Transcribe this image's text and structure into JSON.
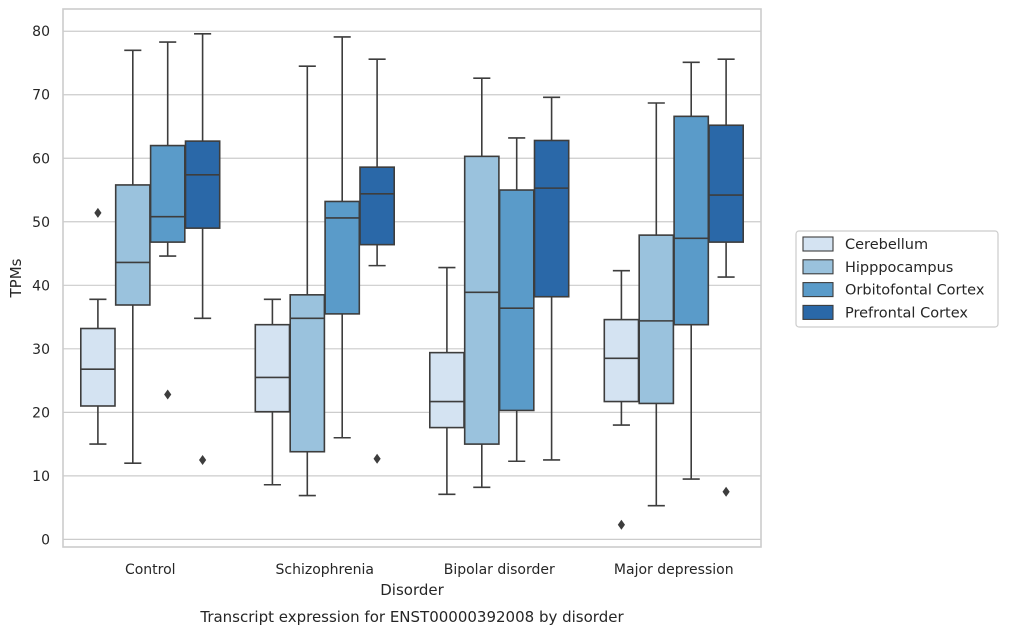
{
  "chart_data": {
    "type": "box",
    "caption": "Transcript expression for ENST00000392008 by disorder",
    "xlabel": "Disorder",
    "ylabel": "TPMs",
    "ylim": [
      -1.2,
      83.5
    ],
    "yticks": [
      0,
      10,
      20,
      30,
      40,
      50,
      60,
      70,
      80
    ],
    "grid": "horizontal",
    "legend_position": "right",
    "categories": [
      "Control",
      "Schizophrenia",
      "Bipolar disorder",
      "Major depression"
    ],
    "series": [
      {
        "name": "Cerebellum",
        "color": "#d4e3f2",
        "boxes": [
          {
            "whislo": 15.0,
            "q1": 21.0,
            "med": 26.8,
            "q3": 33.2,
            "whishi": 37.8,
            "fliers": [
              51.4
            ]
          },
          {
            "whislo": 8.6,
            "q1": 20.1,
            "med": 25.5,
            "q3": 33.8,
            "whishi": 37.8,
            "fliers": []
          },
          {
            "whislo": 7.1,
            "q1": 17.6,
            "med": 21.7,
            "q3": 29.4,
            "whishi": 42.8,
            "fliers": []
          },
          {
            "whislo": 18.0,
            "q1": 21.7,
            "med": 28.5,
            "q3": 34.6,
            "whishi": 42.3,
            "fliers": [
              2.3
            ]
          }
        ]
      },
      {
        "name": "Hipppocampus",
        "color": "#9ac2dd",
        "boxes": [
          {
            "whislo": 12.0,
            "q1": 36.9,
            "med": 43.6,
            "q3": 55.8,
            "whishi": 77.0,
            "fliers": []
          },
          {
            "whislo": 6.9,
            "q1": 13.8,
            "med": 34.8,
            "q3": 38.5,
            "whishi": 74.5,
            "fliers": []
          },
          {
            "whislo": 8.2,
            "q1": 15.0,
            "med": 38.9,
            "q3": 60.3,
            "whishi": 72.6,
            "fliers": []
          },
          {
            "whislo": 5.3,
            "q1": 21.4,
            "med": 34.4,
            "q3": 47.9,
            "whishi": 68.7,
            "fliers": []
          }
        ]
      },
      {
        "name": "Orbitofontal Cortex",
        "color": "#5a9bc9",
        "boxes": [
          {
            "whislo": 44.6,
            "q1": 46.8,
            "med": 50.8,
            "q3": 62.0,
            "whishi": 78.3,
            "fliers": [
              22.8
            ]
          },
          {
            "whislo": 16.0,
            "q1": 35.5,
            "med": 50.6,
            "q3": 53.2,
            "whishi": 79.1,
            "fliers": []
          },
          {
            "whislo": 12.3,
            "q1": 20.3,
            "med": 36.4,
            "q3": 55.0,
            "whishi": 63.2,
            "fliers": []
          },
          {
            "whislo": 9.5,
            "q1": 33.8,
            "med": 47.4,
            "q3": 66.6,
            "whishi": 75.1,
            "fliers": []
          }
        ]
      },
      {
        "name": "Prefrontal Cortex",
        "color": "#2a68a8",
        "boxes": [
          {
            "whislo": 34.8,
            "q1": 49.0,
            "med": 57.4,
            "q3": 62.7,
            "whishi": 79.6,
            "fliers": [
              12.5
            ]
          },
          {
            "whislo": 43.1,
            "q1": 46.4,
            "med": 54.4,
            "q3": 58.6,
            "whishi": 75.6,
            "fliers": [
              12.7
            ]
          },
          {
            "whislo": 12.5,
            "q1": 38.2,
            "med": 55.3,
            "q3": 62.8,
            "whishi": 69.6,
            "fliers": []
          },
          {
            "whislo": 41.3,
            "q1": 46.8,
            "med": 54.2,
            "q3": 65.2,
            "whishi": 75.6,
            "fliers": [
              7.5
            ]
          }
        ]
      }
    ]
  }
}
